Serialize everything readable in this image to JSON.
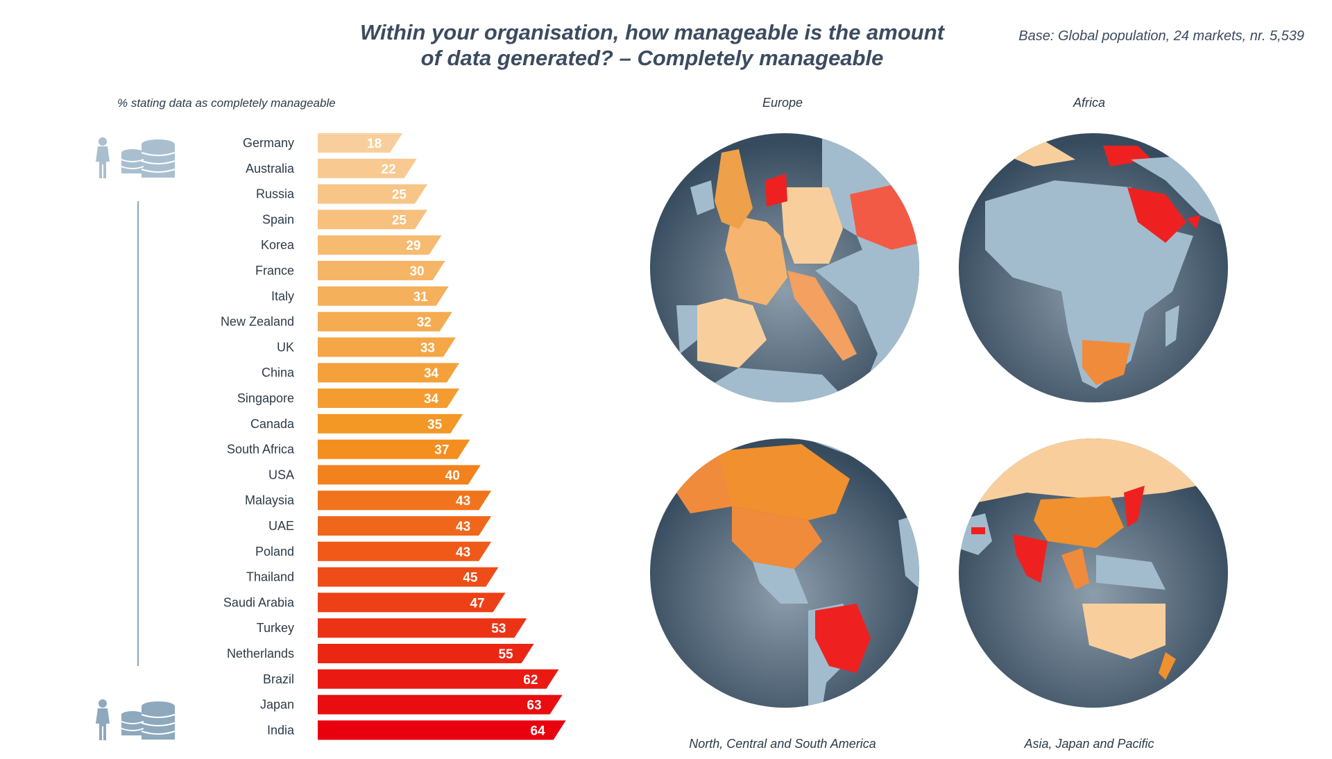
{
  "header": {
    "title_line1": "Within your organisation, how manageable is the amount",
    "title_line2": "of data generated? – Completely manageable",
    "base": "Base: Global population, 24 markets, nr. 5,539"
  },
  "chart_data": {
    "type": "bar",
    "orientation": "horizontal",
    "title": "Within your organisation, how manageable is the amount of data generated? – Completely manageable",
    "subtitle": "% stating data as completely manageable",
    "categories": [
      "Germany",
      "Australia",
      "Russia",
      "Spain",
      "Korea",
      "France",
      "Italy",
      "New Zealand",
      "UK",
      "China",
      "Singapore",
      "Canada",
      "South Africa",
      "USA",
      "Malaysia",
      "UAE",
      "Poland",
      "Thailand",
      "Saudi Arabia",
      "Turkey",
      "Netherlands",
      "Brazil",
      "Japan",
      "India"
    ],
    "values": [
      18,
      22,
      25,
      25,
      29,
      30,
      31,
      32,
      33,
      34,
      34,
      35,
      37,
      40,
      43,
      43,
      43,
      45,
      47,
      53,
      55,
      62,
      63,
      64
    ],
    "xlim": [
      0,
      64
    ],
    "color_scale": [
      "#f8cf9c",
      "#f39420",
      "#e8000f"
    ]
  },
  "maps": {
    "europe": "Europe",
    "africa": "Africa",
    "americas": "North, Central and South America",
    "asia": "Asia, Japan and Pacific"
  },
  "icons": [
    "person-icon",
    "database-icon"
  ]
}
